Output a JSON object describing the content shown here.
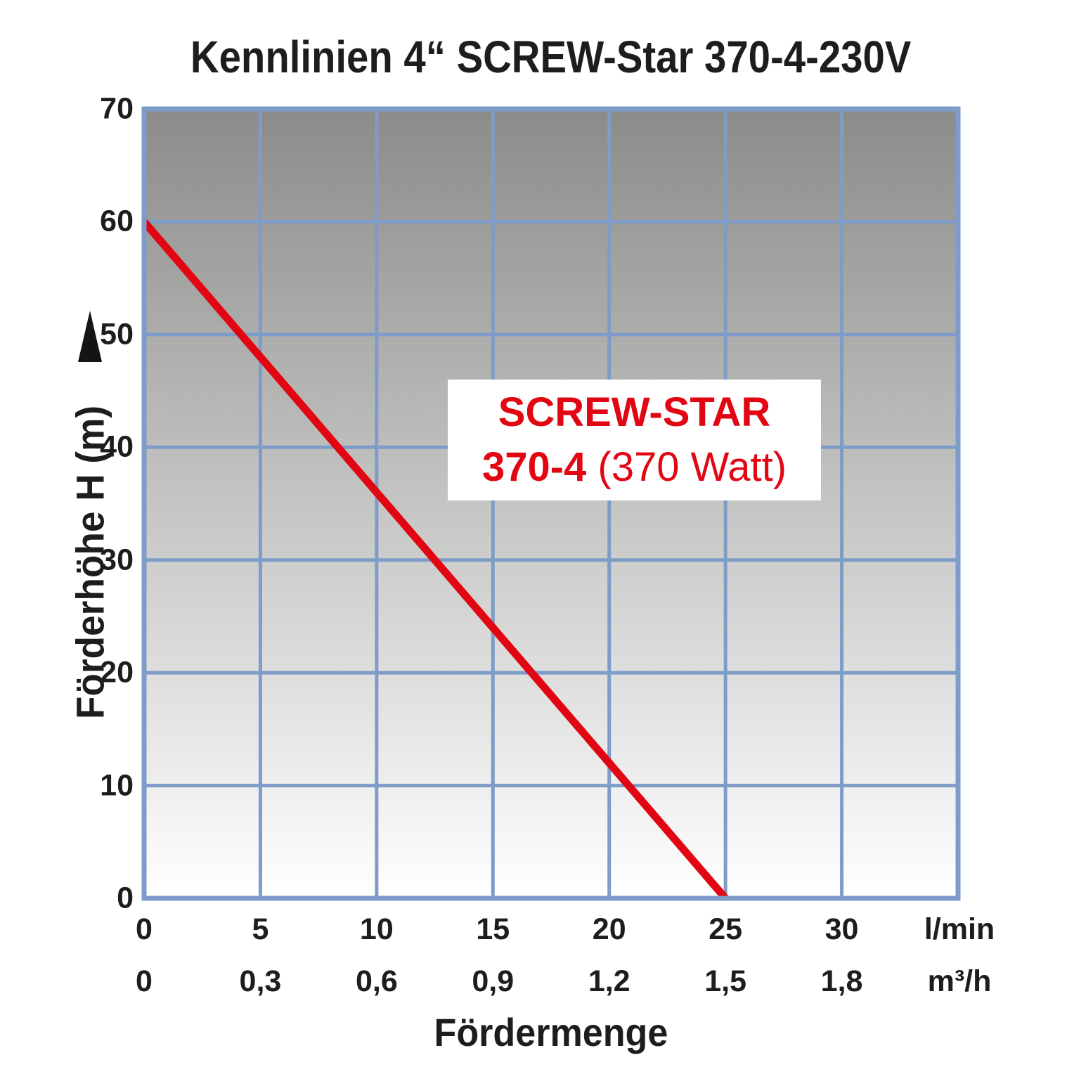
{
  "title": "Kennlinien 4“ SCREW-Star 370-4-230V",
  "y_axis": {
    "label": "Förderhöhe H (m)",
    "ticks": [
      "70",
      "60",
      "50",
      "40",
      "30",
      "20",
      "10",
      "0"
    ]
  },
  "x_axis": {
    "label": "Fördermenge",
    "row_lmin": {
      "ticks": [
        "0",
        "5",
        "10",
        "15",
        "20",
        "25",
        "30"
      ],
      "unit": "l/min"
    },
    "row_m3h": {
      "ticks": [
        "0",
        "0,3",
        "0,6",
        "0,9",
        "1,2",
        "1,5",
        "1,8"
      ],
      "unit": "m³/h"
    }
  },
  "annotation": {
    "line1": "SCREW-STAR",
    "line2_bold": "370-4",
    "line2_regular": " (370 Watt)"
  },
  "colors": {
    "curve": "#e20613",
    "grid": "#7e9cc9",
    "bg_top": "#8b8b89",
    "bg_bottom": "#ffffff",
    "text": "#1d1d1b",
    "annotation_bg": "#ffffff"
  },
  "chart_data": {
    "type": "line",
    "title": "Kennlinien 4“ SCREW-Star 370-4-230V",
    "xlabel": "Fördermenge",
    "ylabel": "Förderhöhe H (m)",
    "x_unit_primary": "l/min",
    "x_unit_secondary": "m³/h",
    "x_ticks_lmin": [
      0,
      5,
      10,
      15,
      20,
      25,
      30
    ],
    "x_ticks_m3h": [
      0,
      0.3,
      0.6,
      0.9,
      1.2,
      1.5,
      1.8
    ],
    "xlim_lmin": [
      0,
      35
    ],
    "ylim_m": [
      0,
      70
    ],
    "y_gridlines_m": [
      10,
      20,
      30,
      40,
      50,
      60
    ],
    "grid": true,
    "legend_position": "annotation box centered in plot",
    "series": [
      {
        "name": "SCREW-STAR 370-4 (370 Watt)",
        "color": "#e20613",
        "points_lmin_m": [
          [
            0,
            60
          ],
          [
            25,
            0
          ]
        ]
      }
    ]
  }
}
